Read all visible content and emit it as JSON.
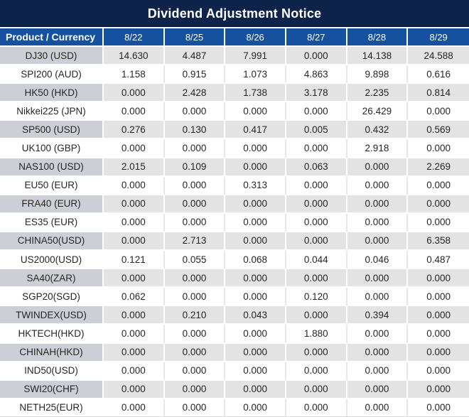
{
  "title": "Dividend Adjustment Notice",
  "table": {
    "product_header": "Product / Currency",
    "date_headers": [
      "8/22",
      "8/25",
      "8/26",
      "8/27",
      "8/28",
      "8/29"
    ],
    "zero_value": "0.000",
    "rows": [
      {
        "product": "DJ30 (USD)",
        "values": [
          "14.630",
          "4.487",
          "7.991",
          "0.000",
          "14.138",
          "24.588"
        ]
      },
      {
        "product": "SPI200 (AUD)",
        "values": [
          "1.158",
          "0.915",
          "1.073",
          "4.863",
          "9.898",
          "0.616"
        ]
      },
      {
        "product": "HK50 (HKD)",
        "values": [
          "0.000",
          "2.428",
          "1.738",
          "3.178",
          "2.235",
          "0.814"
        ]
      },
      {
        "product": "Nikkei225 (JPN)",
        "values": [
          "0.000",
          "0.000",
          "0.000",
          "0.000",
          "26.429",
          "0.000"
        ]
      },
      {
        "product": "SP500 (USD)",
        "values": [
          "0.276",
          "0.130",
          "0.417",
          "0.005",
          "0.432",
          "0.569"
        ]
      },
      {
        "product": "UK100 (GBP)",
        "values": [
          "0.000",
          "0.000",
          "0.000",
          "0.000",
          "2.918",
          "0.000"
        ]
      },
      {
        "product": "NAS100 (USD)",
        "values": [
          "2.015",
          "0.109",
          "0.000",
          "0.063",
          "0.000",
          "2.269"
        ]
      },
      {
        "product": "EU50 (EUR)",
        "values": [
          "0.000",
          "0.000",
          "0.313",
          "0.000",
          "0.000",
          "0.000"
        ]
      },
      {
        "product": "FRA40 (EUR)",
        "values": [
          "0.000",
          "0.000",
          "0.000",
          "0.000",
          "0.000",
          "0.000"
        ]
      },
      {
        "product": "ES35 (EUR)",
        "values": [
          "0.000",
          "0.000",
          "0.000",
          "0.000",
          "0.000",
          "0.000"
        ]
      },
      {
        "product": "CHINA50(USD)",
        "values": [
          "0.000",
          "2.713",
          "0.000",
          "0.000",
          "0.000",
          "6.358"
        ]
      },
      {
        "product": "US2000(USD)",
        "values": [
          "0.121",
          "0.055",
          "0.068",
          "0.044",
          "0.046",
          "0.487"
        ]
      },
      {
        "product": "SA40(ZAR)",
        "values": [
          "0.000",
          "0.000",
          "0.000",
          "0.000",
          "0.000",
          "0.000"
        ]
      },
      {
        "product": "SGP20(SGD)",
        "values": [
          "0.062",
          "0.000",
          "0.000",
          "0.120",
          "0.000",
          "0.000"
        ]
      },
      {
        "product": "TWINDEX(USD)",
        "values": [
          "0.000",
          "0.210",
          "0.043",
          "0.000",
          "0.394",
          "0.000"
        ]
      },
      {
        "product": "HKTECH(HKD)",
        "values": [
          "0.000",
          "0.000",
          "0.000",
          "1.880",
          "0.000",
          "0.000"
        ]
      },
      {
        "product": "CHINAH(HKD)",
        "values": [
          "0.000",
          "0.000",
          "0.000",
          "0.000",
          "0.000",
          "0.000"
        ]
      },
      {
        "product": "IND50(USD)",
        "values": [
          "0.000",
          "0.000",
          "0.000",
          "0.000",
          "0.000",
          "0.000"
        ]
      },
      {
        "product": "SWI20(CHF)",
        "values": [
          "0.000",
          "0.000",
          "0.000",
          "0.000",
          "0.000",
          "0.000"
        ]
      },
      {
        "product": "NETH25(EUR)",
        "values": [
          "0.000",
          "0.000",
          "0.000",
          "0.000",
          "0.000",
          "0.000"
        ]
      }
    ]
  },
  "colors": {
    "title_bar_bg": "#0d2349",
    "header_row_bg": "#15519f",
    "header_text": "#ffffff",
    "gray_row_value_bg": "#e3e3e3",
    "gray_row_product_bg": "#ccd0d6",
    "white_row_bg": "#ffffff",
    "nonzero_value_text": "#fe0000",
    "zero_value_text": "#262626"
  }
}
